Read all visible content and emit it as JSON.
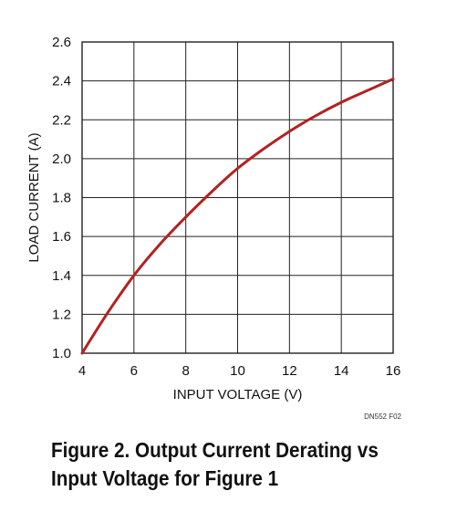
{
  "chart_data": {
    "type": "line",
    "xlabel": "INPUT VOLTAGE (V)",
    "ylabel": "LOAD CURRENT (A)",
    "xlim": [
      4,
      16
    ],
    "ylim": [
      1.0,
      2.6
    ],
    "xticks": [
      "4",
      "6",
      "8",
      "10",
      "12",
      "14",
      "16"
    ],
    "yticks": [
      "1.0",
      "1.2",
      "1.4",
      "1.6",
      "1.8",
      "2.0",
      "2.2",
      "2.4",
      "2.6"
    ],
    "grid": true,
    "series": [
      {
        "color": "#b22222",
        "x": [
          4,
          5,
          6,
          7,
          8,
          9,
          10,
          11,
          12,
          13,
          14,
          15,
          16
        ],
        "y": [
          1.0,
          1.21,
          1.4,
          1.56,
          1.7,
          1.83,
          1.95,
          2.05,
          2.14,
          2.22,
          2.29,
          2.35,
          2.41
        ]
      }
    ]
  },
  "figure_code": "DN552 F02",
  "caption": {
    "line1": "Figure 2. Output Current Derating vs",
    "line2": "Input Voltage for Figure 1"
  }
}
